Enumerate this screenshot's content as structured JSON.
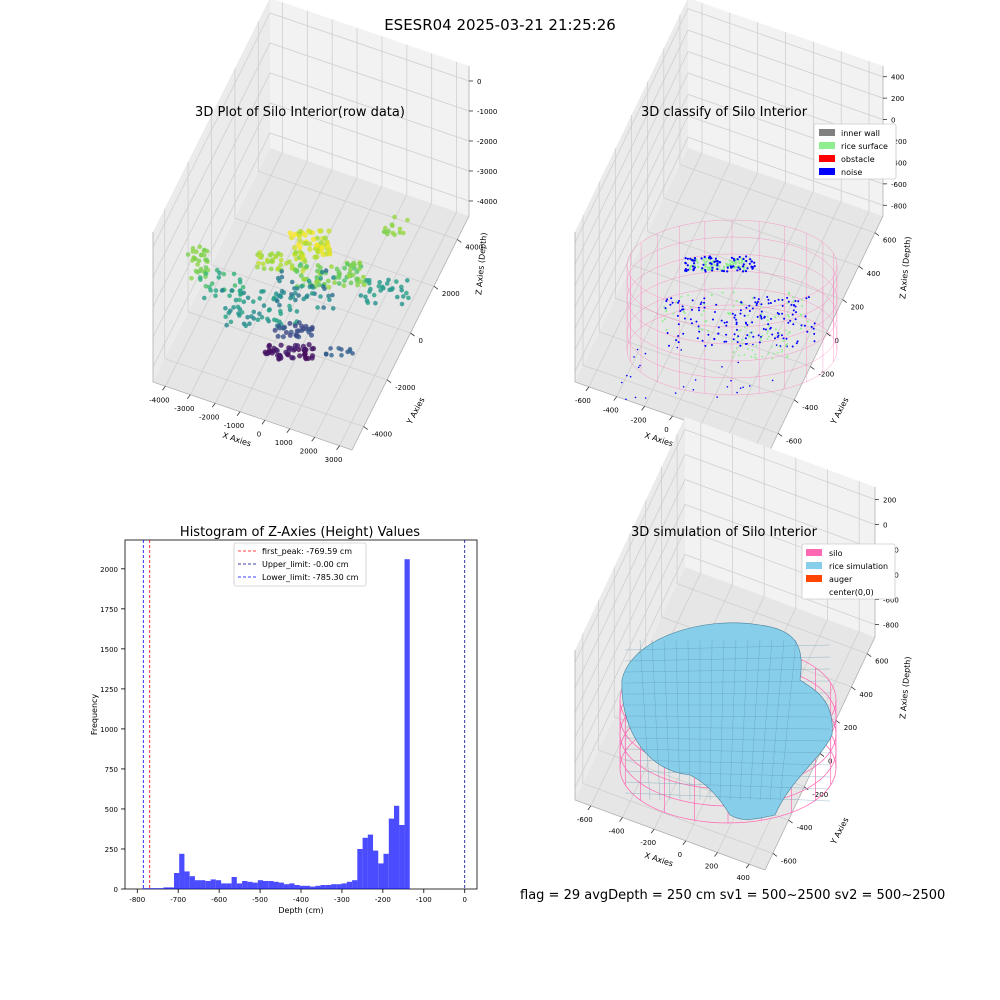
{
  "figure": {
    "suptitle": "ESESR04 2025-03-21 21:25:26",
    "status_line": "flag = 29  avgDepth = 250 cm  sv1 = 500~2500  sv2 = 500~2500"
  },
  "chart_data": [
    {
      "type": "scatter",
      "subtype": "3d",
      "title": "3D Plot of Silo Interior(row data)",
      "xlabel": "X Axies",
      "ylabel": "Y Axies",
      "zlabel": "Z Axies (Depth)",
      "x_ticks": [
        "-4000",
        "-3000",
        "-2000",
        "-1000",
        "0",
        "1000",
        "2000",
        "3000"
      ],
      "y_ticks": [
        "-4000",
        "-2000",
        "0",
        "2000",
        "4000"
      ],
      "z_ticks": [
        "-4000",
        "-3000",
        "-2000",
        "-1000",
        "0"
      ],
      "xlim": [
        -4000,
        3500
      ],
      "ylim": [
        -4500,
        4500
      ],
      "zlim": [
        -4300,
        300
      ],
      "colormap": "viridis",
      "grid": true,
      "clusters": [
        {
          "x": [
            -3200,
            -2800
          ],
          "y": [
            3500,
            3600
          ],
          "z": [
            -1600,
            -3000
          ]
        },
        {
          "x": [
            -1500,
            500
          ],
          "y": [
            -500,
            500
          ],
          "z": [
            -1500,
            -2200
          ]
        },
        {
          "x": [
            -500,
            1500
          ],
          "y": [
            0,
            2000
          ],
          "z": [
            -2500,
            -2000
          ]
        },
        {
          "x": [
            -1800,
            -500
          ],
          "y": [
            -2500,
            -1500
          ],
          "z": [
            -3600,
            -4100
          ]
        },
        {
          "x": [
            1500,
            2800
          ],
          "y": [
            1000,
            2500
          ],
          "z": [
            -2400,
            -2800
          ]
        },
        {
          "x": [
            1800,
            2400
          ],
          "y": [
            3500,
            4200
          ],
          "z": [
            -300,
            -900
          ]
        }
      ]
    },
    {
      "type": "scatter",
      "subtype": "3d",
      "title": "3D classify of Silo Interior",
      "xlabel": "X Axies",
      "ylabel": "Y Axies",
      "zlabel": "Z Axies (Depth)",
      "x_ticks": [
        "-600",
        "-400",
        "-200",
        "0",
        "200",
        "400",
        "600"
      ],
      "y_ticks": [
        "-600",
        "-400",
        "-200",
        "0",
        "200",
        "400",
        "600"
      ],
      "z_ticks": [
        "-800",
        "-600",
        "-400",
        "-200",
        "0",
        "200",
        "400"
      ],
      "xlim": [
        -650,
        650
      ],
      "ylim": [
        -650,
        650
      ],
      "zlim": [
        -900,
        420
      ],
      "grid": true,
      "legend_position": "top-right",
      "series": [
        {
          "name": "inner wall",
          "color": "#808080"
        },
        {
          "name": "rice surface",
          "color": "#90ee90"
        },
        {
          "name": "obstacle",
          "color": "#ff0000"
        },
        {
          "name": "noise",
          "color": "#0000ff"
        }
      ],
      "silo_wireframe_color": "#ff69b4"
    },
    {
      "type": "bar",
      "subtype": "histogram",
      "title": "Histogram of Z-Axies (Height) Values",
      "xlabel": "Depth (cm)",
      "ylabel": "Frequency",
      "x_ticks": [
        "-800",
        "-700",
        "-600",
        "-500",
        "-400",
        "-300",
        "-200",
        "-100",
        "0"
      ],
      "y_ticks": [
        "0",
        "250",
        "500",
        "750",
        "1000",
        "1250",
        "1500",
        "1750",
        "2000"
      ],
      "xlim": [
        -830,
        30
      ],
      "ylim": [
        0,
        2180
      ],
      "bar_color": "#0000ff",
      "bin_width": 12.8,
      "bin_start": -800,
      "counts": [
        0,
        5,
        5,
        5,
        5,
        10,
        10,
        100,
        220,
        110,
        80,
        55,
        55,
        50,
        60,
        55,
        35,
        35,
        75,
        35,
        50,
        45,
        40,
        55,
        50,
        50,
        45,
        40,
        30,
        35,
        25,
        20,
        20,
        15,
        20,
        25,
        25,
        30,
        30,
        35,
        45,
        55,
        250,
        320,
        340,
        240,
        160,
        220,
        440,
        520,
        400,
        2060
      ],
      "legend_position": "upper-center",
      "vlines": [
        {
          "label": "first_peak: -769.59 cm",
          "x": -769.59,
          "color": "#ff0000",
          "style": "dashed"
        },
        {
          "label": "Upper_limit: -0.00 cm",
          "x": 0,
          "color": "#00008b",
          "style": "dashed"
        },
        {
          "label": "Lower_limit: -785.30 cm",
          "x": -785.3,
          "color": "#0000ff",
          "style": "dashed"
        }
      ]
    },
    {
      "type": "area",
      "subtype": "3d-surface",
      "title": "3D simulation of Silo Interior",
      "xlabel": "X Axies",
      "ylabel": "Y Axies",
      "zlabel": "Z Axies (Depth)",
      "x_ticks": [
        "-600",
        "-400",
        "-200",
        "0",
        "200",
        "400"
      ],
      "y_ticks": [
        "-600",
        "-400",
        "-200",
        "0",
        "200",
        "400",
        "600"
      ],
      "z_ticks": [
        "-800",
        "-600",
        "-400",
        "-200",
        "0",
        "200"
      ],
      "xlim": [
        -650,
        650
      ],
      "ylim": [
        -650,
        650
      ],
      "zlim": [
        -900,
        300
      ],
      "grid": true,
      "legend_position": "top-right",
      "series": [
        {
          "name": "silo",
          "color": "#ff69b4"
        },
        {
          "name": "rice simulation",
          "color": "#87ceeb"
        },
        {
          "name": "auger",
          "color": "#ff4500"
        },
        {
          "name": "center(0,0)",
          "color": "#ffffff"
        }
      ]
    }
  ]
}
